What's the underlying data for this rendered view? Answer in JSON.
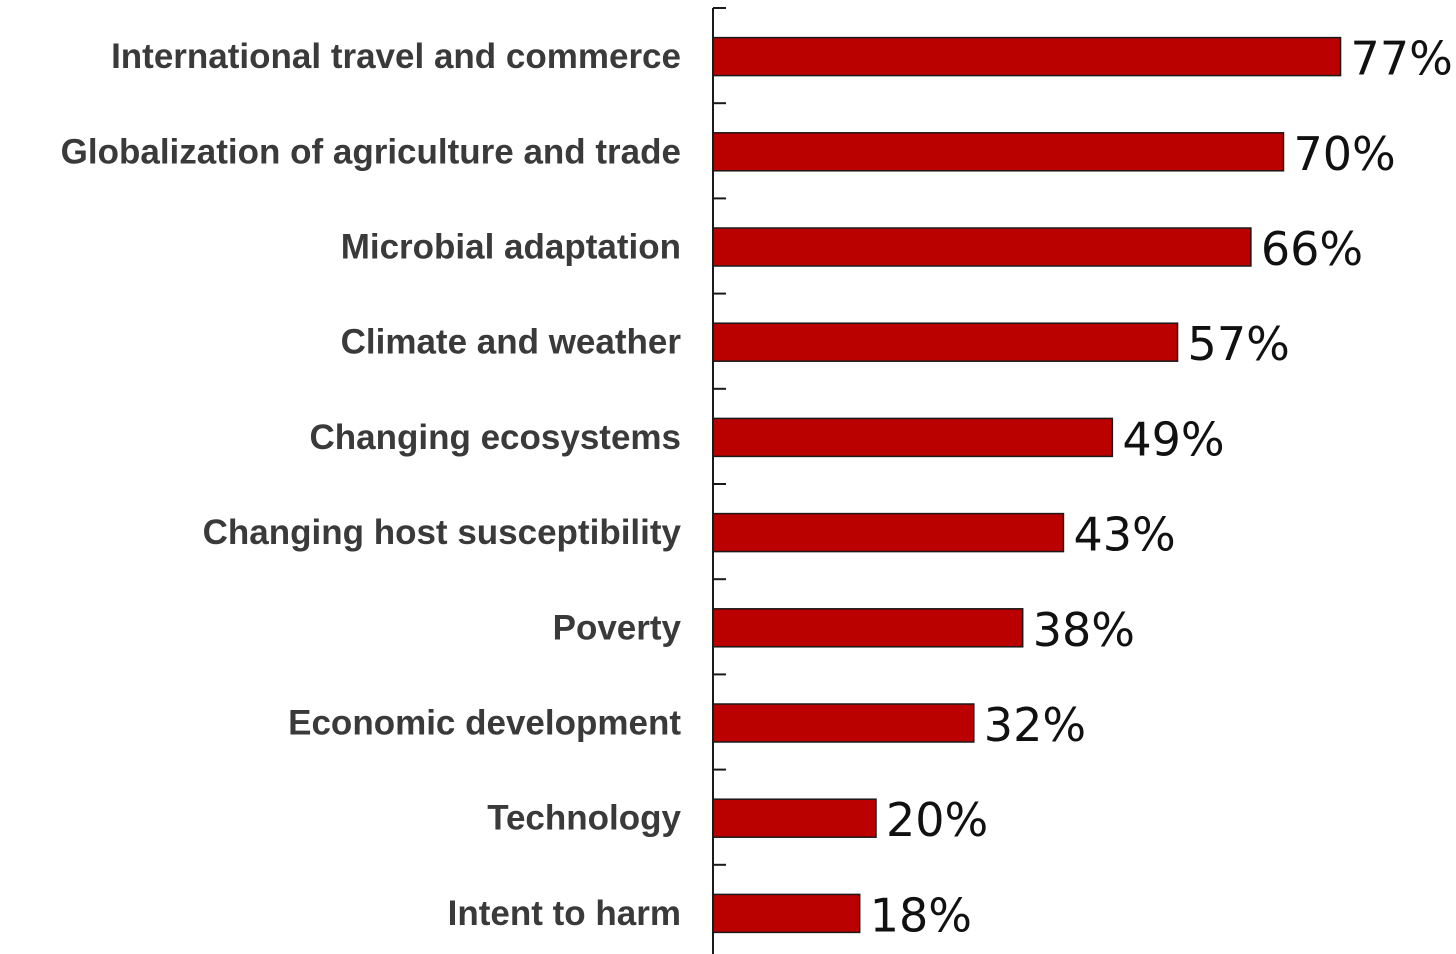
{
  "chart_data": {
    "type": "bar",
    "orientation": "horizontal",
    "categories": [
      "International travel and commerce",
      "Globalization of agriculture and trade",
      "Microbial adaptation",
      "Climate and weather",
      "Changing ecosystems",
      "Changing host susceptibility",
      "Poverty",
      "Economic development",
      "Technology",
      "Intent to harm"
    ],
    "values": [
      77,
      70,
      66,
      57,
      49,
      43,
      38,
      32,
      20,
      18
    ],
    "value_labels": [
      "77%",
      "70%",
      "66%",
      "57%",
      "49%",
      "43%",
      "38%",
      "32%",
      "20%",
      "18%"
    ],
    "bar_color": "#bb0000",
    "xlim": [
      0,
      100
    ],
    "grid": false,
    "legend": "none"
  }
}
